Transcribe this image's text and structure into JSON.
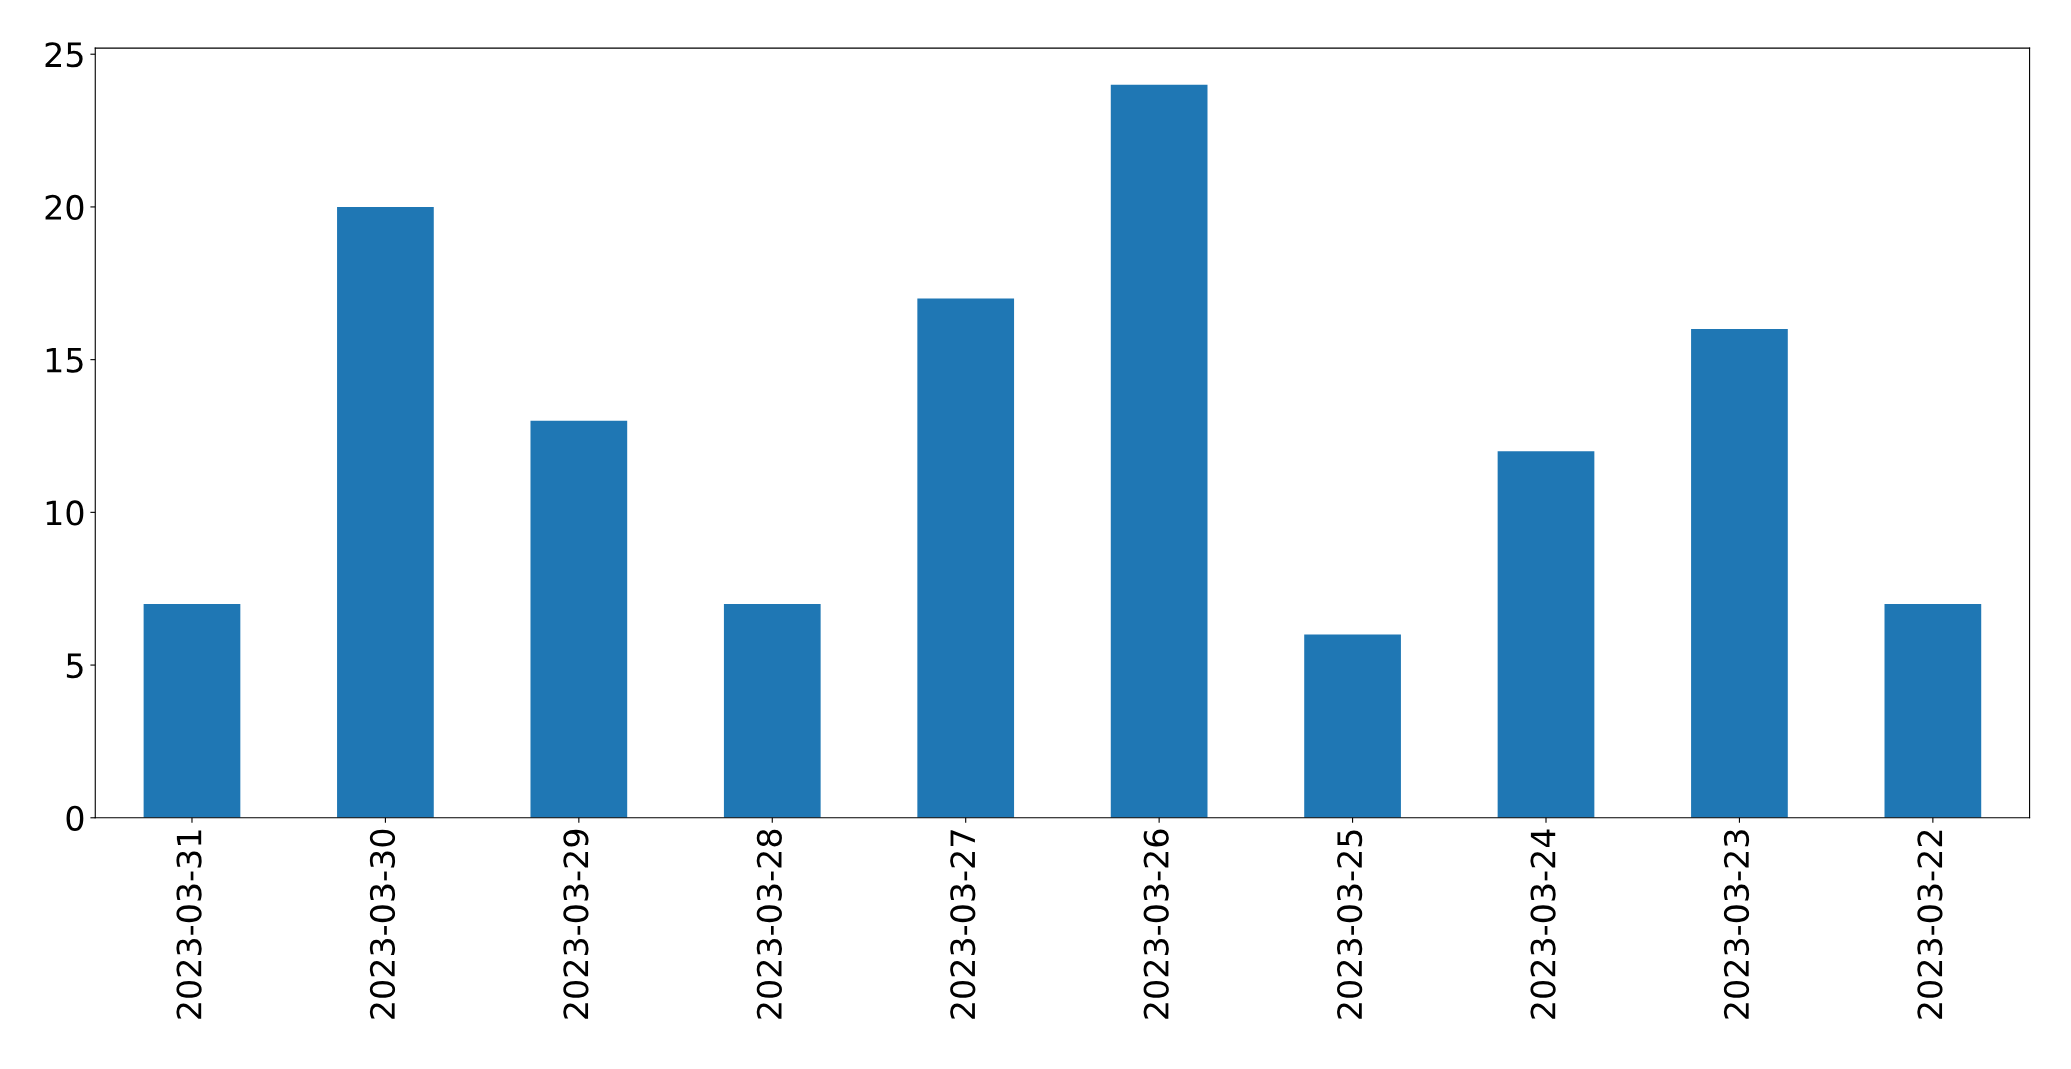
{
  "chart_data": {
    "type": "bar",
    "categories": [
      "2023-03-31",
      "2023-03-30",
      "2023-03-29",
      "2023-03-28",
      "2023-03-27",
      "2023-03-26",
      "2023-03-25",
      "2023-03-24",
      "2023-03-23",
      "2023-03-22"
    ],
    "values": [
      7,
      20,
      13,
      7,
      17,
      24,
      6,
      12,
      16,
      7
    ],
    "color": "#1f77b4",
    "ylim": [
      0,
      25.2
    ],
    "yticks": [
      0,
      5,
      10,
      15,
      20,
      25
    ],
    "grid": false,
    "legend": false
  }
}
